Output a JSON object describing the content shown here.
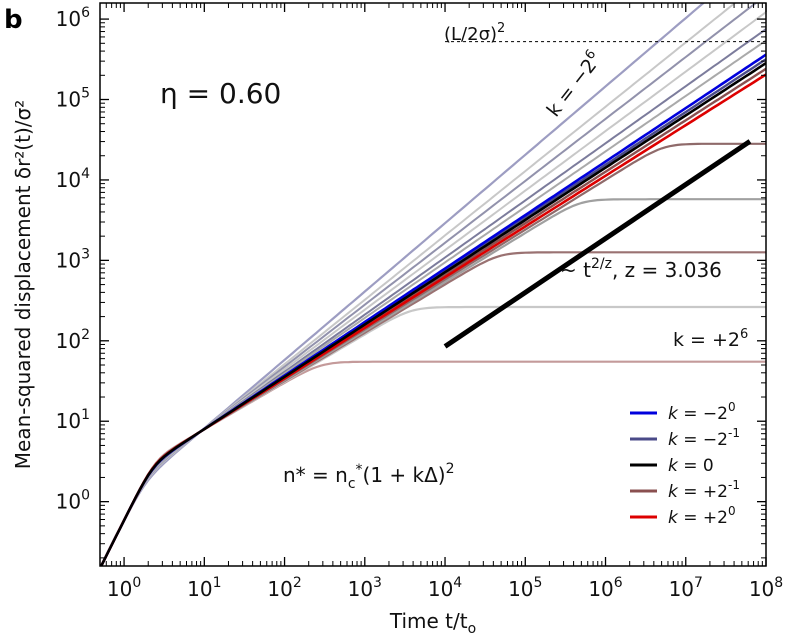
{
  "chart_data": {
    "type": "line",
    "panel_label": "b",
    "xlabel": "Time t/t",
    "xlabel_sub": "o",
    "ylabel": "Mean-squared displacement δr²(t)/σ²",
    "xscale": "log",
    "yscale": "log",
    "xlim_log10": [
      -0.3,
      8
    ],
    "ylim_log10": [
      -0.8,
      6.2
    ],
    "x_ticks": [
      {
        "base": "10",
        "exp": "0",
        "log": 0
      },
      {
        "base": "10",
        "exp": "1",
        "log": 1
      },
      {
        "base": "10",
        "exp": "2",
        "log": 2
      },
      {
        "base": "10",
        "exp": "3",
        "log": 3
      },
      {
        "base": "10",
        "exp": "4",
        "log": 4
      },
      {
        "base": "10",
        "exp": "5",
        "log": 5
      },
      {
        "base": "10",
        "exp": "6",
        "log": 6
      },
      {
        "base": "10",
        "exp": "7",
        "log": 7
      },
      {
        "base": "10",
        "exp": "8",
        "log": 8
      }
    ],
    "y_ticks": [
      {
        "base": "10",
        "exp": "0",
        "log": 0
      },
      {
        "base": "10",
        "exp": "1",
        "log": 1
      },
      {
        "base": "10",
        "exp": "2",
        "log": 2
      },
      {
        "base": "10",
        "exp": "3",
        "log": 3
      },
      {
        "base": "10",
        "exp": "4",
        "log": 4
      },
      {
        "base": "10",
        "exp": "5",
        "log": 5
      },
      {
        "base": "10",
        "exp": "6",
        "log": 6
      }
    ],
    "eta_label": "η = 0.60",
    "box_size_label": "(L/2σ)",
    "box_size_exp": "2",
    "box_size_log10": 5.72,
    "k_top_label": "k = −2",
    "k_top_exp": "6",
    "k_bottom_label": "k = +2",
    "k_bottom_exp": "6",
    "scaling_label": "~ t",
    "scaling_exp": "2/z",
    "scaling_z": ", z = 3.036",
    "scaling_line": {
      "log_t": [
        4,
        7.8
      ],
      "log_msd": [
        1.93,
        4.48
      ]
    },
    "formula": {
      "lhs": "n* = n",
      "sub": "c",
      "star": "*",
      "rhs": "(1 + kΔ)",
      "exp": "2"
    },
    "legend_position": "bottom-right",
    "legend": [
      {
        "k": "k",
        "eq": "= −2",
        "exp": "0",
        "color": "#0000dd"
      },
      {
        "k": "k",
        "eq": "= −2",
        "exp": "-1",
        "color": "#4a4a88"
      },
      {
        "k": "k",
        "eq": "=   0",
        "exp": "",
        "color": "#000000"
      },
      {
        "k": "k",
        "eq": "= +2",
        "exp": "-1",
        "color": "#8a5050"
      },
      {
        "k": "k",
        "eq": "= +2",
        "exp": "0",
        "color": "#dd0000"
      }
    ],
    "series": [
      {
        "name": "k=-2^6",
        "color": "#9d9dc2",
        "width": 2.2,
        "plateau_log10": null,
        "slope": 0.85,
        "order": 1
      },
      {
        "name": "k=-2^5",
        "color": "#c8c8c8",
        "width": 2.0,
        "plateau_log10": null,
        "slope": 0.8,
        "order": 2
      },
      {
        "name": "k=-2^4",
        "color": "#9292ac",
        "width": 2.0,
        "plateau_log10": null,
        "slope": 0.77,
        "order": 3
      },
      {
        "name": "k=-2^3",
        "color": "#c8c8c8",
        "width": 2.0,
        "plateau_log10": null,
        "slope": 0.74,
        "order": 4
      },
      {
        "name": "k=-2^2",
        "color": "#7c7c9c",
        "width": 2.0,
        "plateau_log10": null,
        "slope": 0.71,
        "order": 5
      },
      {
        "name": "k=-2^1",
        "color": "#aaaaaa",
        "width": 2.0,
        "plateau_log10": null,
        "slope": 0.69,
        "order": 6
      },
      {
        "name": "k=-2^0",
        "color": "#0000dd",
        "width": 2.6,
        "plateau_log10": null,
        "slope": 0.665,
        "order": 10
      },
      {
        "name": "k=-2^-1",
        "color": "#4a4a88",
        "width": 2.4,
        "plateau_log10": null,
        "slope": 0.657,
        "order": 9
      },
      {
        "name": "k=0",
        "color": "#000000",
        "width": 2.6,
        "plateau_log10": null,
        "slope": 0.65,
        "order": 12
      },
      {
        "name": "k=+2^-1",
        "color": "#8a5050",
        "width": 2.4,
        "plateau_log10": null,
        "slope": 0.64,
        "order": 8
      },
      {
        "name": "k=+2^0",
        "color": "#dd0000",
        "width": 2.6,
        "plateau_log10": null,
        "slope": 0.63,
        "order": 11
      },
      {
        "name": "k=+2^1",
        "color": "#8f6a6a",
        "width": 2.2,
        "plateau_log10": 4.45,
        "slope": 0.62,
        "order": 7
      },
      {
        "name": "k=+2^2",
        "color": "#a0a0a0",
        "width": 2.2,
        "plateau_log10": 3.76,
        "slope": 0.61,
        "order": 6
      },
      {
        "name": "k=+2^3",
        "color": "#9a7272",
        "width": 2.2,
        "plateau_log10": 3.1,
        "slope": 0.6,
        "order": 5
      },
      {
        "name": "k=+2^4",
        "color": "#c8c8c8",
        "width": 2.2,
        "plateau_log10": 2.42,
        "slope": 0.59,
        "order": 4
      },
      {
        "name": "k=+2^6",
        "color": "#c49a9a",
        "width": 2.2,
        "plateau_log10": 1.74,
        "slope": 0.58,
        "order": 3
      }
    ]
  }
}
